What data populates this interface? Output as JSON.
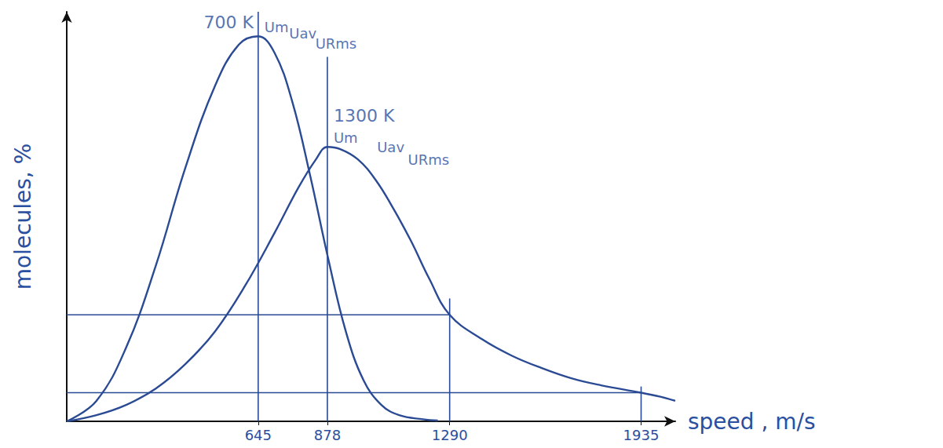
{
  "chart_data": {
    "type": "line",
    "x_label": "speed , m/s",
    "y_label": "molecules, %",
    "xlim": [
      0,
      2050
    ],
    "xticks": [
      645,
      878,
      1290,
      1935
    ],
    "ylim": [
      0,
      100
    ],
    "yticks": [],
    "grid": false,
    "tick_labels": "x",
    "series": [
      {
        "name": "700 K",
        "color": "#2b4a94",
        "x": [
          0,
          100,
          200,
          300,
          400,
          500,
          580,
          645,
          700,
          760,
          820,
          880,
          940,
          1000,
          1060,
          1120,
          1200,
          1250
        ],
        "values": [
          0,
          5,
          18,
          38,
          62,
          82,
          92,
          94,
          90,
          78,
          60,
          40,
          22,
          10,
          4,
          1.5,
          0.5,
          0.2
        ],
        "annotations": [
          {
            "text": "Um",
            "x": 645,
            "y": 94
          },
          {
            "text": "Uav",
            "x": 670,
            "y": 92.5
          },
          {
            "text": "URms",
            "x": 700,
            "y": 90
          }
        ]
      },
      {
        "name": "1300 K",
        "color": "#2b4a94",
        "x": [
          0,
          100,
          200,
          300,
          400,
          500,
          600,
          700,
          780,
          840,
          878,
          920,
          980,
          1040,
          1100,
          1160,
          1220,
          1290,
          1400,
          1500,
          1600,
          1700,
          1800,
          1935,
          2000,
          2050
        ],
        "values": [
          0,
          1.5,
          4,
          8,
          14,
          22,
          33,
          46,
          57,
          64,
          67,
          66.5,
          64,
          59,
          52,
          44,
          35,
          26,
          20,
          16,
          13,
          10.5,
          8.8,
          7,
          6,
          5
        ],
        "annotations": [
          {
            "text": "Um",
            "x": 878,
            "y": 67
          },
          {
            "text": "Uav",
            "x": 966,
            "y": 64.6
          },
          {
            "text": "URms",
            "x": 1012,
            "y": 61.5
          }
        ]
      }
    ],
    "guide_lines": [
      {
        "x": [
          645,
          645
        ],
        "y": [
          0,
          100
        ]
      },
      {
        "x": [
          878,
          878
        ],
        "y": [
          0,
          89
        ]
      },
      {
        "x": [
          1290,
          1290
        ],
        "y": [
          0,
          30
        ]
      },
      {
        "x": [
          1935,
          1935
        ],
        "y": [
          0,
          8.5
        ]
      },
      {
        "x": [
          0,
          1290
        ],
        "y": [
          26,
          26
        ]
      },
      {
        "x": [
          0,
          1935
        ],
        "y": [
          7,
          7
        ]
      }
    ]
  }
}
